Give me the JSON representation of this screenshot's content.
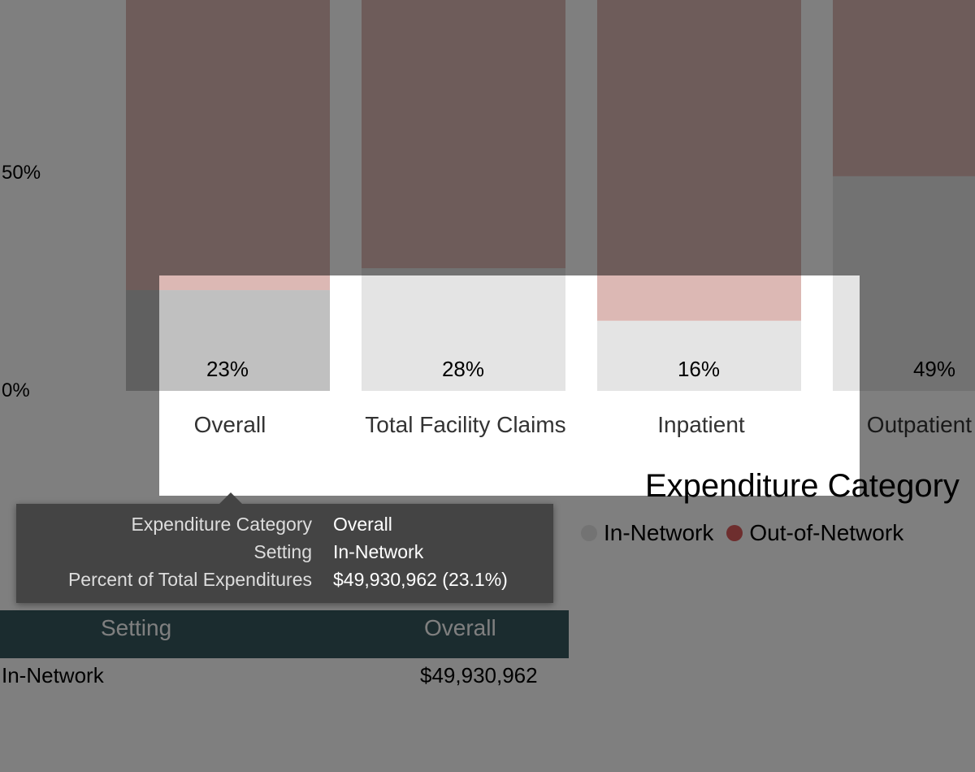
{
  "chart_data": {
    "type": "bar",
    "stacked": true,
    "percent": true,
    "categories": [
      "Overall",
      "Total Facility Claims",
      "Inpatient",
      "Outpatient"
    ],
    "series": [
      {
        "name": "In-Network",
        "values": [
          23,
          28,
          16,
          49
        ]
      },
      {
        "name": "Out-of-Network",
        "values": [
          77,
          72,
          84,
          51
        ]
      }
    ],
    "value_labels": [
      "23%",
      "28%",
      "16%",
      "49%"
    ],
    "y_ticks": [
      "50%",
      "0%"
    ],
    "ylim": [
      0,
      100
    ],
    "colors": {
      "In-Network": "#e4e4e4",
      "In-Network-selected": "#c0c0c0",
      "Out-of-Network": "#dcb8b4"
    },
    "legend": {
      "title": "Expenditure Category",
      "items": [
        {
          "label": "In-Network",
          "color": "#e6e6e6"
        },
        {
          "label": "Out-of-Network",
          "color": "#dc5c5c"
        }
      ],
      "placement": "right"
    }
  },
  "tooltip": {
    "rows": [
      {
        "key": "Expenditure Category",
        "value": "Overall"
      },
      {
        "key": "Setting",
        "value": "In-Network"
      },
      {
        "key": "Percent of Total Expenditures",
        "value": "$49,930,962 (23.1%)"
      }
    ]
  },
  "table": {
    "headers": [
      "Setting",
      "Overall"
    ],
    "rows": [
      [
        "In-Network",
        "$49,930,962"
      ]
    ]
  }
}
